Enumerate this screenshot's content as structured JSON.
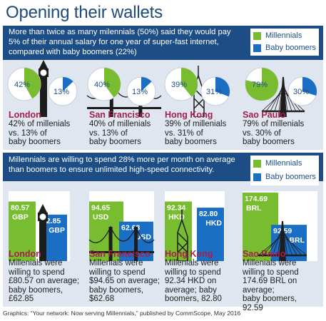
{
  "title": "Opening their wallets",
  "colors": {
    "millennials": "#78bc2f",
    "boomers": "#1a6fc4",
    "header": "#1c4e85",
    "city": "#a4204a"
  },
  "legend": {
    "millennials": "Millennials",
    "boomers": "Baby boomers"
  },
  "panel1": {
    "header_lines": [
      "More than twice as many milennials (50%) said they would pay",
      "5% of their annual salary for one year of super-fast internet,",
      "compared with baby boomers (22%)"
    ],
    "cities": [
      {
        "name": "London",
        "icon": "big-ben-icon",
        "millennials_label": "42%",
        "boomers_label": "13%",
        "desc": [
          "42% of millenials",
          "vs. 13% of",
          "baby boomers"
        ]
      },
      {
        "name": "San Francisco",
        "icon": "golden-gate-bridge-icon",
        "millennials_label": "40%",
        "boomers_label": "13%",
        "desc": [
          "40% of millenials",
          "vs. 13% of",
          "baby boomers"
        ]
      },
      {
        "name": "Hong Kong",
        "icon": "bank-of-china-tower-icon",
        "millennials_label": "39%",
        "boomers_label": "31%",
        "desc": [
          "39% of millenials",
          "vs. 31% of",
          "baby boomers"
        ]
      },
      {
        "name": "Sao Paulo",
        "icon": "octavio-frias-bridge-icon",
        "millennials_label": "79%",
        "boomers_label": "30%",
        "desc": [
          "79% of millenials",
          "vs. 30% of",
          "baby boomers"
        ]
      }
    ]
  },
  "panel2": {
    "header_lines": [
      "Millennials are willing to spend 28% more per month on average",
      "than boomers to ensure unlimited high-speed connectivity."
    ],
    "cities": [
      {
        "name": "London",
        "m_value": "80.57",
        "m_unit": "GBP",
        "b_value": "62.85",
        "b_unit": "GBP",
        "desc": [
          "Millenials were",
          "willing to spend",
          "£80.57 on average;",
          "baby boomers,",
          "£62.85"
        ]
      },
      {
        "name": "San Francisco",
        "m_value": "94.65",
        "m_unit": "USD",
        "b_value": "62.68",
        "b_unit": "USD",
        "desc": [
          "Millenials were",
          "willing to spend",
          "$94.65 on average;",
          "baby boomers,",
          "$62.68"
        ]
      },
      {
        "name": "Hong Kong",
        "m_value": "92.34",
        "m_unit": "HKD",
        "b_value": "82.80",
        "b_unit": "HKD",
        "desc": [
          "Millenials were",
          "willing to spend",
          "92.34 HKD on",
          "average; baby",
          "boomers, 82.80"
        ]
      },
      {
        "name": "Sao Paulo",
        "m_value": "174.69",
        "m_unit": "BRL",
        "b_value": "92.59",
        "b_unit": "BRL",
        "desc": [
          "Millenials were",
          "willing to spend",
          "174.69 BRL on average;",
          "baby boomers,",
          "92.59"
        ]
      }
    ]
  },
  "footer": "Graphics: “Your network: Now serving Millennials,” published by CommScope, May 2016",
  "chart_data": [
    {
      "type": "pie",
      "categories": [
        "London",
        "San Francisco",
        "Hong Kong",
        "Sao Paulo"
      ],
      "series": [
        {
          "name": "Millennials",
          "values": [
            42,
            40,
            39,
            79
          ]
        },
        {
          "name": "Baby boomers",
          "values": [
            13,
            13,
            31,
            30
          ]
        }
      ]
    },
    {
      "type": "bar",
      "categories": [
        "London",
        "San Francisco",
        "Hong Kong",
        "Sao Paulo"
      ],
      "series": [
        {
          "name": "Millennials",
          "values": [
            80.57,
            94.65,
            92.34,
            174.69
          ]
        },
        {
          "name": "Baby boomers",
          "values": [
            62.85,
            62.68,
            82.8,
            92.59
          ]
        }
      ]
    }
  ]
}
